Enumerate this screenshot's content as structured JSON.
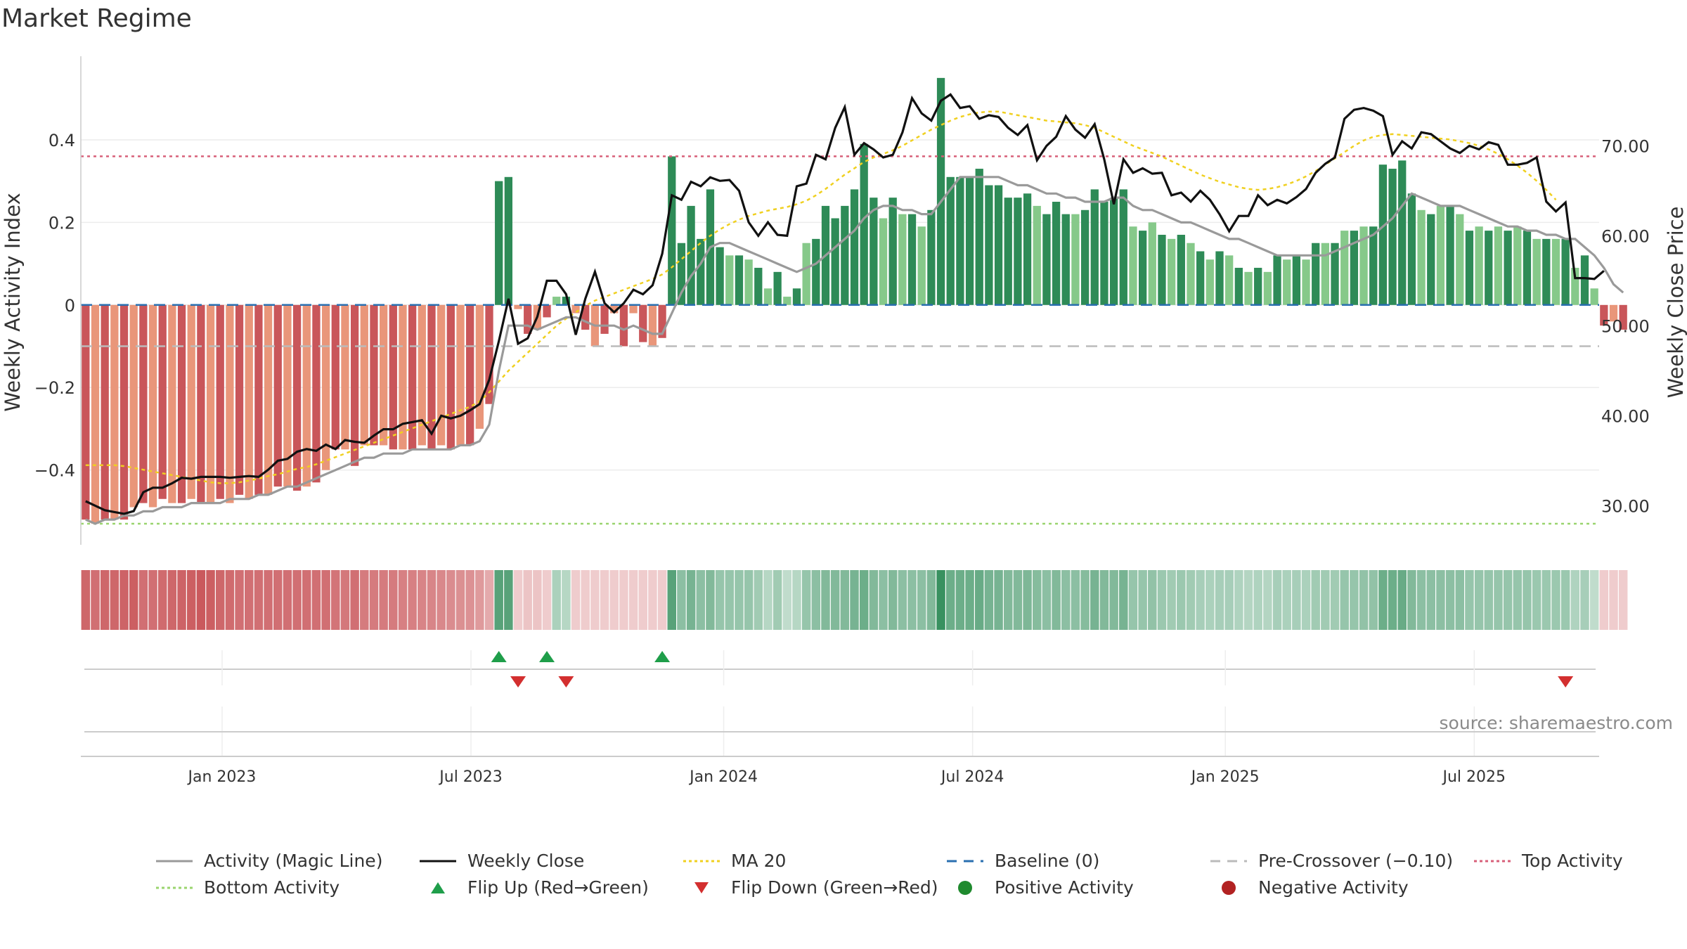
{
  "title": "Market Regime",
  "source": "source: sharemaestro.com",
  "chart_data": {
    "type": "bar",
    "title": "Market Regime",
    "ylabel_left": "Weekly Activity Index",
    "ylabel_right": "Weekly Close Price",
    "ylim_left": [
      -0.53,
      0.56
    ],
    "ylim_right": [
      28,
      78
    ],
    "left_ticks": [
      "0.4",
      "0.2",
      "0",
      "−0.2",
      "−0.4"
    ],
    "left_tick_values": [
      0.4,
      0.2,
      0,
      -0.2,
      -0.4
    ],
    "right_ticks": [
      "70.00",
      "60.00",
      "50.00",
      "40.00",
      "30.00"
    ],
    "right_tick_values": [
      70,
      60,
      50,
      40,
      30
    ],
    "x_ticks": [
      "Jan 2023",
      "Jul 2023",
      "Jan 2024",
      "Jul 2024",
      "Jan 2025",
      "Jul 2025"
    ],
    "x_tick_weeks": [
      14.7,
      40.6,
      66.9,
      92.8,
      119.1,
      145.0
    ],
    "weeks": 158,
    "top_activity": 0.36,
    "pre_crossover": -0.1,
    "baseline": 0,
    "bottom_activity": -0.53,
    "activity": [
      -0.52,
      -0.53,
      -0.52,
      -0.52,
      -0.52,
      -0.49,
      -0.48,
      -0.49,
      -0.47,
      -0.48,
      -0.48,
      -0.47,
      -0.48,
      -0.48,
      -0.47,
      -0.48,
      -0.46,
      -0.47,
      -0.46,
      -0.46,
      -0.44,
      -0.44,
      -0.45,
      -0.44,
      -0.43,
      -0.4,
      -0.35,
      -0.35,
      -0.39,
      -0.34,
      -0.34,
      -0.34,
      -0.35,
      -0.35,
      -0.35,
      -0.34,
      -0.35,
      -0.34,
      -0.35,
      -0.34,
      -0.34,
      -0.3,
      -0.24,
      0.3,
      0.31,
      -0.01,
      -0.07,
      -0.06,
      -0.03,
      0.02,
      0.02,
      -0.02,
      -0.06,
      -0.1,
      -0.07,
      -0.02,
      -0.1,
      -0.02,
      -0.09,
      -0.1,
      -0.08,
      0.36,
      0.15,
      0.24,
      0.16,
      0.28,
      0.14,
      0.12,
      0.12,
      0.11,
      0.09,
      0.04,
      0.08,
      0.02,
      0.04,
      0.15,
      0.16,
      0.24,
      0.21,
      0.24,
      0.28,
      0.39,
      0.26,
      0.21,
      0.26,
      0.22,
      0.22,
      0.19,
      0.23,
      0.55,
      0.31,
      0.31,
      0.31,
      0.33,
      0.29,
      0.29,
      0.26,
      0.26,
      0.27,
      0.24,
      0.22,
      0.25,
      0.22,
      0.22,
      0.23,
      0.28,
      0.25,
      0.26,
      0.28,
      0.19,
      0.18,
      0.2,
      0.17,
      0.16,
      0.17,
      0.15,
      0.13,
      0.11,
      0.13,
      0.12,
      0.09,
      0.08,
      0.09,
      0.08,
      0.12,
      0.11,
      0.12,
      0.11,
      0.15,
      0.15,
      0.15,
      0.18,
      0.18,
      0.19,
      0.19,
      0.34,
      0.33,
      0.35,
      0.27,
      0.23,
      0.22,
      0.24,
      0.24,
      0.22,
      0.18,
      0.19,
      0.18,
      0.19,
      0.18,
      0.19,
      0.18,
      0.16,
      0.16,
      0.16,
      0.16,
      0.09,
      0.12,
      0.04,
      -0.05,
      -0.04,
      -0.06
    ],
    "magic_line": [
      -0.52,
      -0.53,
      -0.52,
      -0.52,
      -0.51,
      -0.51,
      -0.5,
      -0.5,
      -0.49,
      -0.49,
      -0.49,
      -0.48,
      -0.48,
      -0.48,
      -0.48,
      -0.47,
      -0.47,
      -0.47,
      -0.46,
      -0.46,
      -0.45,
      -0.44,
      -0.44,
      -0.43,
      -0.42,
      -0.41,
      -0.4,
      -0.39,
      -0.38,
      -0.37,
      -0.37,
      -0.36,
      -0.36,
      -0.36,
      -0.35,
      -0.35,
      -0.35,
      -0.35,
      -0.35,
      -0.34,
      -0.34,
      -0.33,
      -0.29,
      -0.16,
      -0.05,
      -0.05,
      -0.05,
      -0.06,
      -0.05,
      -0.04,
      -0.03,
      -0.03,
      -0.04,
      -0.05,
      -0.05,
      -0.05,
      -0.06,
      -0.05,
      -0.06,
      -0.07,
      -0.07,
      -0.02,
      0.03,
      0.07,
      0.1,
      0.14,
      0.15,
      0.15,
      0.14,
      0.13,
      0.12,
      0.11,
      0.1,
      0.09,
      0.08,
      0.09,
      0.1,
      0.12,
      0.14,
      0.16,
      0.18,
      0.21,
      0.23,
      0.24,
      0.24,
      0.23,
      0.23,
      0.22,
      0.22,
      0.25,
      0.28,
      0.31,
      0.31,
      0.31,
      0.31,
      0.31,
      0.3,
      0.29,
      0.29,
      0.28,
      0.27,
      0.27,
      0.26,
      0.26,
      0.25,
      0.25,
      0.25,
      0.26,
      0.26,
      0.24,
      0.23,
      0.23,
      0.22,
      0.21,
      0.2,
      0.2,
      0.19,
      0.18,
      0.17,
      0.16,
      0.16,
      0.15,
      0.14,
      0.13,
      0.12,
      0.12,
      0.12,
      0.12,
      0.12,
      0.12,
      0.13,
      0.14,
      0.15,
      0.16,
      0.17,
      0.19,
      0.21,
      0.24,
      0.27,
      0.26,
      0.25,
      0.24,
      0.24,
      0.24,
      0.23,
      0.22,
      0.21,
      0.2,
      0.19,
      0.19,
      0.18,
      0.18,
      0.17,
      0.17,
      0.16,
      0.16,
      0.14,
      0.12,
      0.09,
      0.05,
      0.03
    ],
    "weekly_close": [
      30.5,
      30,
      29.5,
      29.3,
      29.1,
      29.4,
      31.5,
      32,
      32,
      32.5,
      33.1,
      33,
      33.2,
      33.2,
      33.2,
      33.1,
      33.2,
      33.3,
      33.2,
      34,
      35,
      35.2,
      36,
      36.3,
      36.1,
      36.8,
      36.3,
      37.3,
      37.1,
      37.0,
      37.8,
      38.5,
      38.5,
      39.1,
      39.3,
      39.5,
      38.0,
      40.0,
      39.7,
      40.0,
      40.6,
      41.3,
      44.0,
      48.3,
      53,
      48,
      48.6,
      51,
      55,
      55,
      53.5,
      49,
      53,
      56,
      52.5,
      51.5,
      52.5,
      54,
      53.5,
      54.5,
      58,
      64.5,
      64,
      66,
      65.5,
      66.5,
      66.1,
      66.2,
      65,
      61.5,
      60,
      61.5,
      60.1,
      60,
      65.5,
      65.8,
      69,
      68.5,
      72,
      74.3,
      69,
      70.3,
      69.6,
      68.7,
      69,
      71.5,
      75.3,
      73.6,
      72.8,
      75,
      75.7,
      74.2,
      74.4,
      73,
      73.4,
      73.2,
      72,
      71.2,
      72.3,
      68.4,
      70,
      71,
      73.3,
      71.8,
      70.9,
      72.4,
      68.5,
      63.5,
      68.5,
      67,
      67.5,
      66.9,
      67,
      64.5,
      64.8,
      63.8,
      65,
      64,
      62.4,
      60.5,
      62.2,
      62.2,
      64.5,
      63.4,
      64,
      63.6,
      64.3,
      65.2,
      67,
      68,
      68.7,
      73,
      74,
      74.2,
      73.9,
      73.3,
      69,
      70.5,
      69.7,
      71.5,
      71.3,
      70.5,
      69.7,
      69.2,
      70,
      69.6,
      70.4,
      70.1,
      67.9,
      67.9,
      68.1,
      68.7,
      63.8,
      62.7,
      63.7,
      55.3,
      55.3,
      55.2,
      56.1
    ],
    "ma20": [
      34.5,
      34.5,
      34.5,
      34.5,
      34.4,
      34.2,
      34.0,
      33.8,
      33.6,
      33.4,
      33.2,
      33.0,
      32.8,
      32.6,
      32.5,
      32.5,
      32.6,
      32.8,
      33.0,
      33.3,
      33.5,
      33.8,
      34.1,
      34.3,
      34.6,
      35.0,
      35.4,
      35.8,
      36.2,
      36.6,
      37.0,
      37.4,
      37.8,
      38.2,
      38.6,
      39.0,
      39.4,
      39.8,
      40.2,
      40.6,
      41.0,
      41.6,
      42.6,
      43.8,
      45.0,
      46.0,
      47.0,
      48.0,
      49.0,
      50.0,
      50.8,
      51.5,
      52.2,
      52.8,
      53.2,
      53.6,
      54.0,
      54.4,
      54.8,
      55.2,
      55.7,
      56.5,
      57.4,
      58.3,
      59.2,
      60.0,
      60.7,
      61.3,
      61.8,
      62.2,
      62.5,
      62.8,
      63.0,
      63.2,
      63.5,
      63.9,
      64.5,
      65.2,
      66.0,
      66.8,
      67.5,
      68.2,
      68.7,
      69.1,
      69.5,
      70.0,
      70.6,
      71.2,
      71.8,
      72.3,
      72.8,
      73.2,
      73.5,
      73.7,
      73.8,
      73.8,
      73.6,
      73.4,
      73.2,
      73.0,
      72.8,
      72.7,
      72.6,
      72.5,
      72.3,
      72.0,
      71.5,
      71.0,
      70.5,
      70.0,
      69.6,
      69.2,
      68.8,
      68.3,
      67.8,
      67.3,
      66.8,
      66.4,
      66.0,
      65.7,
      65.4,
      65.2,
      65.1,
      65.2,
      65.4,
      65.7,
      66.1,
      66.6,
      67.2,
      67.9,
      68.6,
      69.3,
      70.0,
      70.6,
      71.0,
      71.2,
      71.3,
      71.2,
      71.1,
      71.0,
      70.9,
      70.8,
      70.7,
      70.5,
      70.3,
      70.0,
      69.6,
      69.1,
      68.5,
      67.8,
      67.0,
      66.1,
      65.1,
      64.0
    ],
    "strip_opacity": [
      0.9,
      0.85,
      0.9,
      0.9,
      0.92,
      0.95,
      0.85,
      0.85,
      0.88,
      0.9,
      0.92,
      0.95,
      0.98,
      0.95,
      0.9,
      0.88,
      0.85,
      0.85,
      0.85,
      0.85,
      0.85,
      0.85,
      0.85,
      0.85,
      0.85,
      0.85,
      0.82,
      0.8,
      0.85,
      0.78,
      0.78,
      0.78,
      0.78,
      0.75,
      0.75,
      0.73,
      0.72,
      0.7,
      0.68,
      0.66,
      0.65,
      0.6,
      0.5,
      0.8,
      0.8,
      0.3,
      0.35,
      0.35,
      0.3,
      0.4,
      0.35,
      0.3,
      0.3,
      0.3,
      0.3,
      0.3,
      0.3,
      0.3,
      0.3,
      0.3,
      0.3,
      0.8,
      0.55,
      0.65,
      0.55,
      0.6,
      0.5,
      0.5,
      0.5,
      0.5,
      0.45,
      0.35,
      0.45,
      0.3,
      0.35,
      0.5,
      0.55,
      0.6,
      0.6,
      0.6,
      0.65,
      0.7,
      0.6,
      0.55,
      0.6,
      0.55,
      0.55,
      0.55,
      0.6,
      0.95,
      0.7,
      0.7,
      0.7,
      0.72,
      0.65,
      0.65,
      0.6,
      0.6,
      0.62,
      0.58,
      0.55,
      0.6,
      0.55,
      0.55,
      0.58,
      0.65,
      0.6,
      0.6,
      0.65,
      0.5,
      0.5,
      0.52,
      0.48,
      0.45,
      0.48,
      0.45,
      0.42,
      0.4,
      0.42,
      0.42,
      0.38,
      0.36,
      0.38,
      0.36,
      0.42,
      0.4,
      0.42,
      0.4,
      0.45,
      0.45,
      0.45,
      0.5,
      0.5,
      0.52,
      0.52,
      0.7,
      0.7,
      0.72,
      0.6,
      0.55,
      0.55,
      0.55,
      0.55,
      0.55,
      0.5,
      0.5,
      0.5,
      0.5,
      0.5,
      0.5,
      0.5,
      0.48,
      0.48,
      0.48,
      0.48,
      0.38,
      0.42,
      0.3,
      0.3,
      0.3,
      0.3
    ],
    "flip_up_weeks": [
      43,
      48,
      60
    ],
    "flip_down_weeks": [
      45,
      50,
      154
    ],
    "colors": {
      "strong_green": "#2e8b57",
      "light_green": "#86c98a",
      "strong_red": "#c9565a",
      "light_red": "#e9967a",
      "magic_line": "#9a9a9a",
      "weekly_close": "#111111",
      "ma20": "#f0d020",
      "baseline": "#2a6fb0",
      "pre_crossover": "#bbbbbb",
      "top_activity": "#d8607a",
      "bottom_activity": "#9ad46e",
      "flip_up": "#1f9e4a",
      "flip_down": "#d32f2f",
      "positive": "#1f8a2e",
      "negative": "#b22222"
    }
  },
  "legend": [
    {
      "label": "Activity (Magic Line)",
      "icon": "solid-line",
      "color": "#9a9a9a"
    },
    {
      "label": "Weekly Close",
      "icon": "solid-line",
      "color": "#111111"
    },
    {
      "label": "MA 20",
      "icon": "dotted-line",
      "color": "#f0d020"
    },
    {
      "label": "Baseline (0)",
      "icon": "dashed-line",
      "color": "#2a6fb0"
    },
    {
      "label": "Pre-Crossover (−0.10)",
      "icon": "dashed-line",
      "color": "#bbbbbb"
    },
    {
      "label": "Top Activity",
      "icon": "dotted-line",
      "color": "#d8607a"
    },
    {
      "label": "Bottom Activity",
      "icon": "dotted-line",
      "color": "#9ad46e"
    },
    {
      "label": "Flip Up (Red→Green)",
      "icon": "triangle-up",
      "color": "#1f9e4a"
    },
    {
      "label": "Flip Down (Green→Red)",
      "icon": "triangle-down",
      "color": "#d32f2f"
    },
    {
      "label": "Positive Activity",
      "icon": "dot",
      "color": "#1f8a2e"
    },
    {
      "label": "Negative Activity",
      "icon": "dot",
      "color": "#b22222"
    }
  ]
}
